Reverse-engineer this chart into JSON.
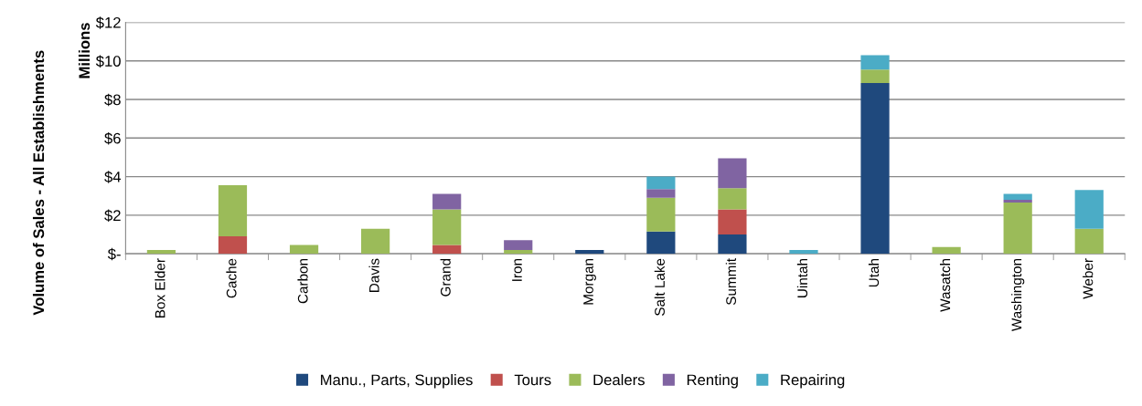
{
  "chart_data": {
    "type": "bar",
    "stacked": true,
    "ylabel": "Volume of Sales - All Establishments",
    "annotations": [
      "Millions"
    ],
    "categories": [
      "Box Elder",
      "Cache",
      "Carbon",
      "Davis",
      "Grand",
      "Iron",
      "Morgan",
      "Salt Lake",
      "Summit",
      "Uintah",
      "Utah",
      "Wasatch",
      "Washington",
      "Weber"
    ],
    "series": [
      {
        "name": "Manu., Parts, Supplies",
        "color": "#1f497d",
        "values": [
          0,
          0,
          0,
          0,
          0,
          0,
          0.2,
          1.15,
          1.0,
          0,
          8.85,
          0,
          0,
          0
        ]
      },
      {
        "name": "Tours",
        "color": "#c0504d",
        "values": [
          0,
          0.9,
          0,
          0,
          0.45,
          0,
          0,
          0,
          1.3,
          0,
          0,
          0,
          0,
          0
        ]
      },
      {
        "name": "Dealers",
        "color": "#9bbb59",
        "values": [
          0.2,
          2.65,
          0.45,
          1.3,
          1.85,
          0.2,
          0,
          1.75,
          1.1,
          0,
          0.7,
          0.35,
          2.65,
          1.3
        ]
      },
      {
        "name": "Renting",
        "color": "#8064a2",
        "values": [
          0,
          0,
          0,
          0,
          0.8,
          0.5,
          0,
          0.45,
          1.55,
          0,
          0,
          0,
          0.15,
          0
        ]
      },
      {
        "name": "Repairing",
        "color": "#4bacc6",
        "values": [
          0,
          0,
          0,
          0,
          0,
          0,
          0,
          0.65,
          0,
          0.2,
          0.75,
          0,
          0.3,
          2.0
        ]
      }
    ],
    "ylim": [
      0,
      12
    ],
    "yticks": [
      {
        "value": 0,
        "label": "$-"
      },
      {
        "value": 2,
        "label": "$2"
      },
      {
        "value": 4,
        "label": "$4"
      },
      {
        "value": 6,
        "label": "$6"
      },
      {
        "value": 8,
        "label": "$8"
      },
      {
        "value": 10,
        "label": "$10"
      },
      {
        "value": 12,
        "label": "$12"
      }
    ],
    "grid": "y",
    "legend": "bottom"
  }
}
